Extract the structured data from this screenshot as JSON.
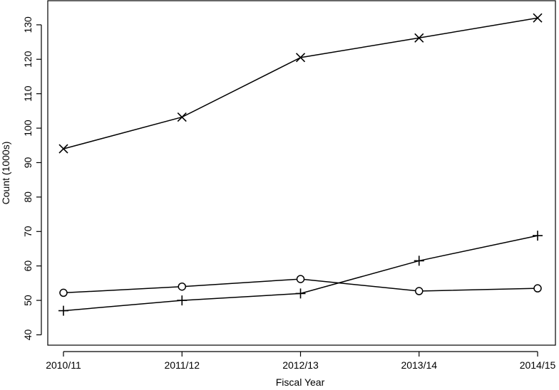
{
  "chart_data": {
    "type": "line",
    "title": "",
    "xlabel": "Fiscal Year",
    "ylabel": "Count  (1000s)",
    "categories": [
      "2010/11",
      "2011/12",
      "2012/13",
      "2013/14",
      "2014/15"
    ],
    "ylim": [
      37,
      137
    ],
    "yticks": [
      40,
      50,
      60,
      70,
      80,
      90,
      100,
      110,
      120,
      130
    ],
    "grid": false,
    "legend": "none",
    "series": [
      {
        "marker": "x-cross",
        "values": [
          94,
          103.2,
          120.5,
          126.2,
          132
        ]
      },
      {
        "marker": "circle",
        "values": [
          52.2,
          54,
          56.2,
          52.7,
          53.5
        ]
      },
      {
        "marker": "plus",
        "values": [
          47,
          50,
          52,
          61.5,
          68.8
        ]
      }
    ],
    "colors": {
      "line": "#000000",
      "background": "#ffffff"
    }
  }
}
